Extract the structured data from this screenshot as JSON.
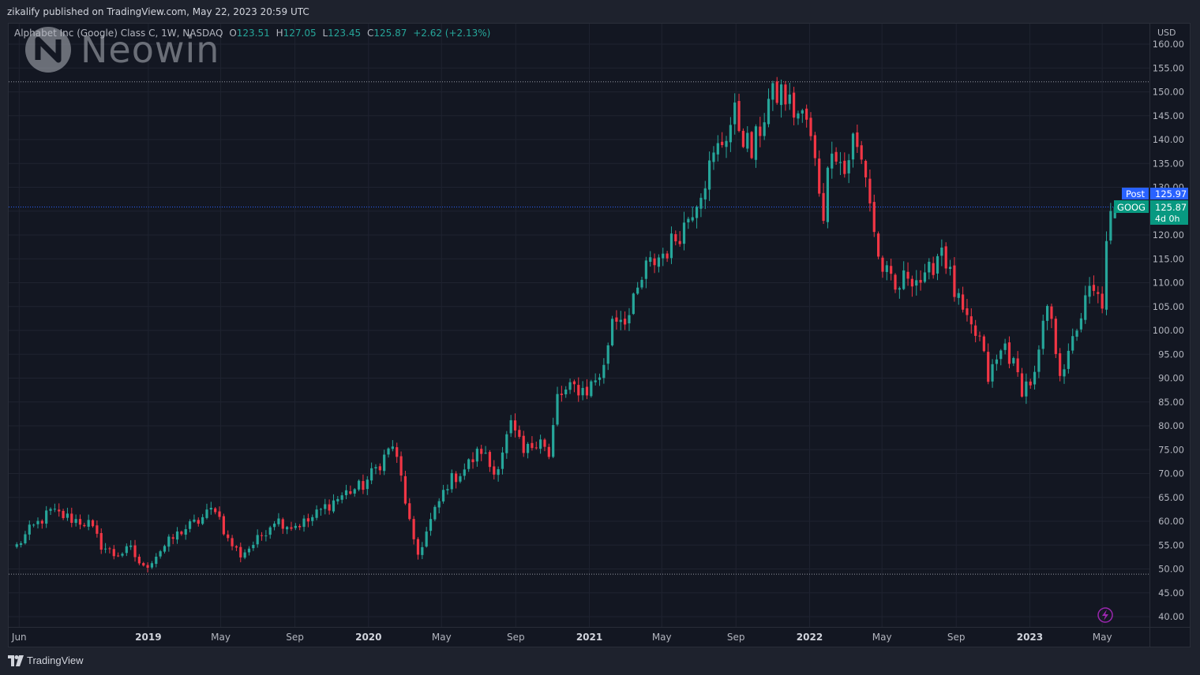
{
  "header": {
    "published": "zikalify published on TradingView.com, May 22, 2023 20:59 UTC"
  },
  "watermark": {
    "text": "Neowin"
  },
  "legend": {
    "symbol": "Alphabet Inc (Google) Class C, 1W, NASDAQ",
    "o_label": "O",
    "o_value": "123.51",
    "h_label": "H",
    "h_value": "127.05",
    "l_label": "L",
    "l_value": "123.45",
    "c_label": "C",
    "c_value": "125.87",
    "change": "+2.62 (+2.13%)"
  },
  "price_tags": {
    "post_label": "Post",
    "post_value": "125.97",
    "symbol_label": "GOOG",
    "last_value": "125.87",
    "countdown": "4d 0h"
  },
  "footer": {
    "brand": "TradingView"
  },
  "colors": {
    "up": "#26a69a",
    "down": "#f23645",
    "post_tag": "#2962ff",
    "last_tag": "#089981",
    "background": "#131722",
    "grid": "#1e222d",
    "alert_icon": "#9c27b0"
  },
  "icons": [
    "neowin-logo-icon",
    "lightning-alert-icon",
    "tradingview-logo-icon"
  ],
  "chart_data": {
    "type": "candlestick",
    "currency_label": "USD",
    "y_ticks": [
      40,
      45,
      50,
      55,
      60,
      65,
      70,
      75,
      80,
      85,
      90,
      95,
      100,
      105,
      110,
      115,
      120,
      125,
      130,
      135,
      140,
      145,
      150,
      155,
      160
    ],
    "ylim": [
      38,
      163
    ],
    "x_ticks": [
      {
        "label": "Jun",
        "date": "2018-06-01",
        "bold": false
      },
      {
        "label": "2019",
        "date": "2019-01-01",
        "bold": true
      },
      {
        "label": "May",
        "date": "2019-05-01",
        "bold": false
      },
      {
        "label": "Sep",
        "date": "2019-09-01",
        "bold": false
      },
      {
        "label": "2020",
        "date": "2020-01-01",
        "bold": true
      },
      {
        "label": "May",
        "date": "2020-05-01",
        "bold": false
      },
      {
        "label": "Sep",
        "date": "2020-09-01",
        "bold": false
      },
      {
        "label": "2021",
        "date": "2021-01-01",
        "bold": true
      },
      {
        "label": "May",
        "date": "2021-05-01",
        "bold": false
      },
      {
        "label": "Sep",
        "date": "2021-09-01",
        "bold": false
      },
      {
        "label": "2022",
        "date": "2022-01-01",
        "bold": true
      },
      {
        "label": "May",
        "date": "2022-05-01",
        "bold": false
      },
      {
        "label": "Sep",
        "date": "2022-09-01",
        "bold": false
      },
      {
        "label": "2023",
        "date": "2023-01-01",
        "bold": true
      },
      {
        "label": "May",
        "date": "2023-05-01",
        "bold": false
      }
    ],
    "xlim": [
      "2018-05-29",
      "2023-07-17"
    ],
    "reference_levels": {
      "high": 152.1,
      "low": 48.9,
      "last": 125.87
    },
    "closes": [
      {
        "date": "2018-05-28",
        "close": 54.8
      },
      {
        "date": "2018-06-18",
        "close": 58.0
      },
      {
        "date": "2018-07-23",
        "close": 62.0
      },
      {
        "date": "2018-08-27",
        "close": 60.5
      },
      {
        "date": "2018-09-24",
        "close": 59.5
      },
      {
        "date": "2018-10-15",
        "close": 55.0
      },
      {
        "date": "2018-11-05",
        "close": 53.0
      },
      {
        "date": "2018-12-03",
        "close": 54.0
      },
      {
        "date": "2018-12-24",
        "close": 50.0
      },
      {
        "date": "2019-01-21",
        "close": 54.0
      },
      {
        "date": "2019-02-25",
        "close": 58.0
      },
      {
        "date": "2019-03-25",
        "close": 60.0
      },
      {
        "date": "2019-04-22",
        "close": 63.0
      },
      {
        "date": "2019-05-13",
        "close": 56.0
      },
      {
        "date": "2019-06-03",
        "close": 53.0
      },
      {
        "date": "2019-07-01",
        "close": 56.0
      },
      {
        "date": "2019-07-29",
        "close": 60.5
      },
      {
        "date": "2019-08-26",
        "close": 59.0
      },
      {
        "date": "2019-09-23",
        "close": 60.0
      },
      {
        "date": "2019-10-21",
        "close": 63.0
      },
      {
        "date": "2019-11-25",
        "close": 66.0
      },
      {
        "date": "2019-12-23",
        "close": 67.5
      },
      {
        "date": "2020-01-13",
        "close": 71.0
      },
      {
        "date": "2020-02-10",
        "close": 76.0
      },
      {
        "date": "2020-02-24",
        "close": 69.0
      },
      {
        "date": "2020-03-16",
        "close": 55.0
      },
      {
        "date": "2020-03-23",
        "close": 53.0
      },
      {
        "date": "2020-04-13",
        "close": 60.0
      },
      {
        "date": "2020-05-11",
        "close": 68.0
      },
      {
        "date": "2020-06-08",
        "close": 71.0
      },
      {
        "date": "2020-07-06",
        "close": 75.0
      },
      {
        "date": "2020-07-27",
        "close": 70.0
      },
      {
        "date": "2020-08-24",
        "close": 80.0
      },
      {
        "date": "2020-09-14",
        "close": 74.0
      },
      {
        "date": "2020-10-12",
        "close": 78.0
      },
      {
        "date": "2020-10-26",
        "close": 73.0
      },
      {
        "date": "2020-11-09",
        "close": 86.0
      },
      {
        "date": "2020-12-07",
        "close": 88.0
      },
      {
        "date": "2020-12-28",
        "close": 87.5
      },
      {
        "date": "2021-01-25",
        "close": 92.0
      },
      {
        "date": "2021-02-08",
        "close": 103.0
      },
      {
        "date": "2021-03-08",
        "close": 103.0
      },
      {
        "date": "2021-04-05",
        "close": 113.0
      },
      {
        "date": "2021-05-10",
        "close": 117.0
      },
      {
        "date": "2021-06-07",
        "close": 122.0
      },
      {
        "date": "2021-07-05",
        "close": 130.0
      },
      {
        "date": "2021-08-02",
        "close": 138.0
      },
      {
        "date": "2021-08-30",
        "close": 145.0
      },
      {
        "date": "2021-09-27",
        "close": 137.0
      },
      {
        "date": "2021-10-25",
        "close": 148.0
      },
      {
        "date": "2021-11-15",
        "close": 150.0
      },
      {
        "date": "2021-12-06",
        "close": 146.0
      },
      {
        "date": "2021-12-27",
        "close": 144.0
      },
      {
        "date": "2022-01-10",
        "close": 135.0
      },
      {
        "date": "2022-01-24",
        "close": 125.0
      },
      {
        "date": "2022-02-07",
        "close": 140.0
      },
      {
        "date": "2022-02-28",
        "close": 133.0
      },
      {
        "date": "2022-03-14",
        "close": 140.0
      },
      {
        "date": "2022-04-04",
        "close": 133.0
      },
      {
        "date": "2022-04-25",
        "close": 115.0
      },
      {
        "date": "2022-05-23",
        "close": 108.0
      },
      {
        "date": "2022-06-13",
        "close": 112.0
      },
      {
        "date": "2022-07-11",
        "close": 110.0
      },
      {
        "date": "2022-08-08",
        "close": 118.0
      },
      {
        "date": "2022-08-29",
        "close": 108.0
      },
      {
        "date": "2022-09-19",
        "close": 101.0
      },
      {
        "date": "2022-10-10",
        "close": 98.0
      },
      {
        "date": "2022-10-24",
        "close": 90.0
      },
      {
        "date": "2022-11-21",
        "close": 97.0
      },
      {
        "date": "2022-12-19",
        "close": 88.0
      },
      {
        "date": "2023-01-09",
        "close": 90.0
      },
      {
        "date": "2023-01-30",
        "close": 105.0
      },
      {
        "date": "2023-02-20",
        "close": 92.0
      },
      {
        "date": "2023-03-06",
        "close": 94.0
      },
      {
        "date": "2023-03-20",
        "close": 101.0
      },
      {
        "date": "2023-04-10",
        "close": 108.0
      },
      {
        "date": "2023-05-01",
        "close": 106.0
      },
      {
        "date": "2023-05-08",
        "close": 117.0
      },
      {
        "date": "2023-05-15",
        "close": 123.25
      },
      {
        "date": "2023-05-22",
        "close": 125.87
      }
    ]
  }
}
